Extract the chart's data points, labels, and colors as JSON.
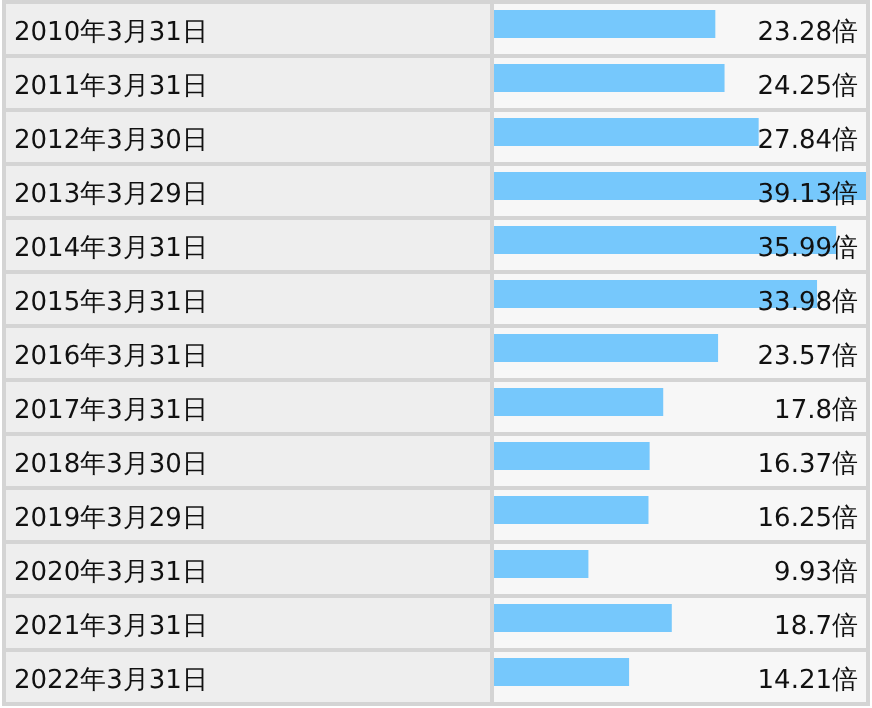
{
  "chart_data": {
    "type": "bar",
    "orientation": "horizontal",
    "color": "#76c8fc",
    "categories": [
      "2010年3月31日",
      "2011年3月31日",
      "2012年3月30日",
      "2013年3月29日",
      "2014年3月31日",
      "2015年3月31日",
      "2016年3月31日",
      "2017年3月31日",
      "2018年3月30日",
      "2019年3月29日",
      "2020年3月31日",
      "2021年3月31日",
      "2022年3月31日"
    ],
    "values": [
      23.28,
      24.25,
      27.84,
      39.13,
      35.99,
      33.98,
      23.57,
      17.8,
      16.37,
      16.25,
      9.93,
      18.7,
      14.21
    ],
    "value_labels": [
      "23.28倍",
      "24.25倍",
      "27.84倍",
      "39.13倍",
      "35.99倍",
      "33.98倍",
      "23.57倍",
      "17.8倍",
      "16.37倍",
      "16.25倍",
      "9.93倍",
      "18.7倍",
      "14.21倍"
    ]
  }
}
